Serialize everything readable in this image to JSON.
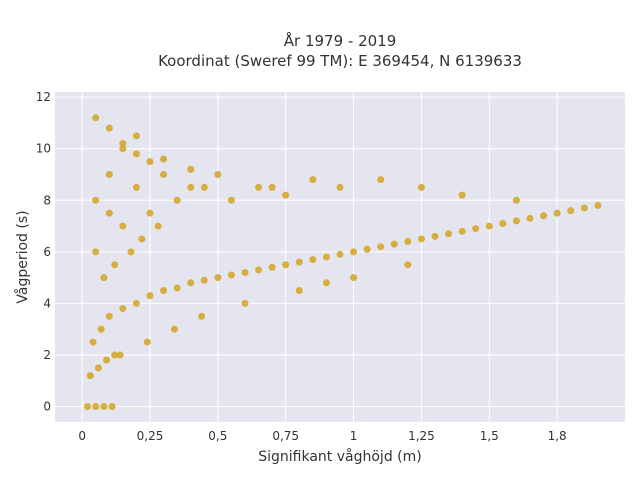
{
  "chart_data": {
    "type": "scatter",
    "title": "År 1979 - 2019",
    "subtitle": "Koordinat (Sweref 99 TM): E 369454, N 6139633",
    "xlabel": "Signifikant våghöjd (m)",
    "ylabel": "Vågperiod (s)",
    "xlim": [
      -0.1,
      2.0
    ],
    "ylim": [
      -0.6,
      12.2
    ],
    "x_ticks": [
      0,
      0.25,
      0.5,
      0.75,
      1,
      1.25,
      1.5,
      1.75
    ],
    "x_tick_labels": [
      "0",
      "0,25",
      "0,5",
      "0,75",
      "1",
      "1,25",
      "1,5",
      "1,8"
    ],
    "y_ticks": [
      0,
      2,
      4,
      6,
      8,
      10,
      12
    ],
    "y_tick_labels": [
      "0",
      "2",
      "4",
      "6",
      "8",
      "10",
      "12"
    ],
    "grid": true,
    "legend": "none",
    "marker_color": "#D4A31F",
    "background_color": "#E5E5EF",
    "series": [
      {
        "x": [
          0.02,
          0.05,
          0.08,
          0.11,
          0.03,
          0.06,
          0.09,
          0.12,
          0.04,
          0.07,
          0.1,
          0.15,
          0.2,
          0.25,
          0.3,
          0.35,
          0.4,
          0.45,
          0.5,
          0.55,
          0.6,
          0.65,
          0.7,
          0.75,
          0.8,
          0.85,
          0.9,
          0.95,
          1.0,
          1.05,
          1.1,
          1.15,
          1.2,
          1.25,
          1.3,
          1.35,
          1.4,
          1.45,
          1.5,
          1.55,
          1.6,
          1.65,
          1.7,
          1.75,
          1.8,
          1.85,
          1.9,
          0.05,
          0.1,
          0.15,
          0.2,
          0.25,
          0.1,
          0.2,
          0.3,
          0.4,
          0.05,
          0.15,
          0.25,
          0.35,
          0.45,
          0.55,
          0.65,
          0.75,
          0.85,
          0.95,
          1.1,
          1.25,
          1.4,
          1.6,
          0.08,
          0.12,
          0.18,
          0.22,
          0.28,
          0.14,
          0.24,
          0.34,
          0.44,
          0.6,
          0.8,
          0.9,
          1.0,
          1.2,
          0.05,
          0.1,
          0.15,
          0.2,
          0.3,
          0.4,
          0.5,
          0.7
        ],
        "y": [
          0,
          0,
          0,
          0,
          1.2,
          1.5,
          1.8,
          2.0,
          2.5,
          3.0,
          3.5,
          3.8,
          4.0,
          4.3,
          4.5,
          4.6,
          4.8,
          4.9,
          5.0,
          5.1,
          5.2,
          5.3,
          5.4,
          5.5,
          5.6,
          5.7,
          5.8,
          5.9,
          6.0,
          6.1,
          6.2,
          6.3,
          6.4,
          6.5,
          6.6,
          6.7,
          6.8,
          6.9,
          7.0,
          7.1,
          7.2,
          7.3,
          7.4,
          7.5,
          7.6,
          7.7,
          7.8,
          8.0,
          9.0,
          10.0,
          10.5,
          9.5,
          7.5,
          8.5,
          9.0,
          8.5,
          6.0,
          7.0,
          7.5,
          8.0,
          8.5,
          8.0,
          8.5,
          8.2,
          8.8,
          8.5,
          8.8,
          8.5,
          8.2,
          8.0,
          5.0,
          5.5,
          6.0,
          6.5,
          7.0,
          2.0,
          2.5,
          3.0,
          3.5,
          4.0,
          4.5,
          4.8,
          5.0,
          5.5,
          11.2,
          10.8,
          10.2,
          9.8,
          9.6,
          9.2,
          9.0,
          8.5
        ]
      }
    ]
  }
}
